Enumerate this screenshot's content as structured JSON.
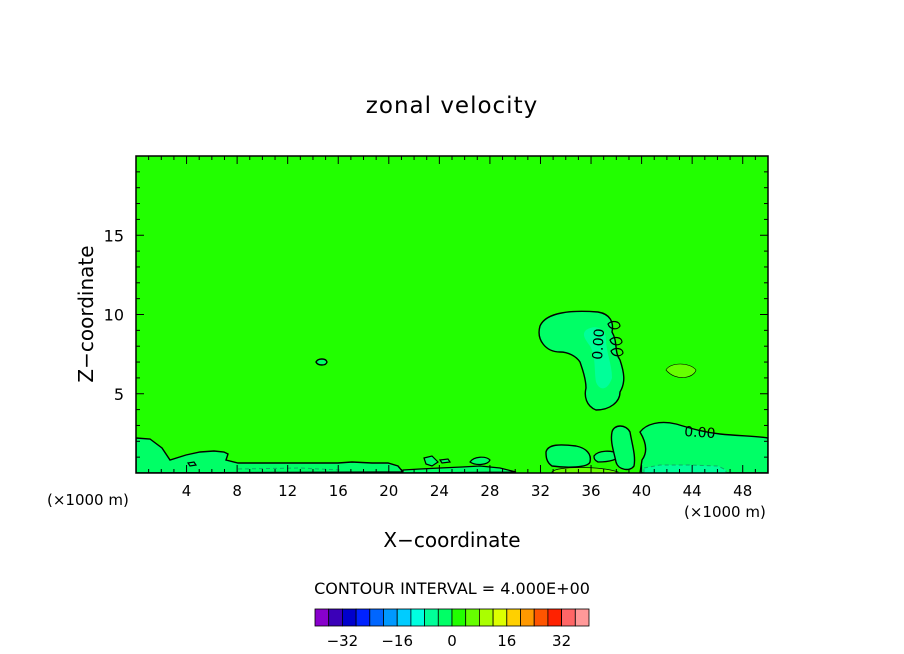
{
  "chart_data": {
    "type": "contour",
    "title": "zonal velocity",
    "xlabel": "X−coordinate",
    "ylabel": "Z−coordinate",
    "x_unit_left": "(×1000 m)",
    "x_unit_right": "(×1000 m)",
    "xlim": [
      0,
      50
    ],
    "ylim": [
      0,
      20
    ],
    "xticks": [
      4,
      8,
      12,
      16,
      20,
      24,
      28,
      32,
      36,
      40,
      44,
      48
    ],
    "yticks": [
      5,
      10,
      15
    ],
    "background_value": 0,
    "contour_label": "0.00",
    "contour_interval_text": "CONTOUR INTERVAL = 4.000E+00",
    "colorbar": {
      "levels": [
        -36,
        -32,
        -28,
        -24,
        -20,
        -16,
        -12,
        -8,
        -4,
        0,
        4,
        8,
        12,
        16,
        20,
        24,
        28,
        32,
        36
      ],
      "tick_labels": [
        "−32",
        "−16",
        "0",
        "16",
        "32"
      ],
      "tick_values": [
        -32,
        -16,
        0,
        16,
        32
      ],
      "colors": [
        "#8800cc",
        "#3b00b8",
        "#0000cc",
        "#0022ff",
        "#0066ff",
        "#0099ff",
        "#00ccff",
        "#00ffe0",
        "#00ff99",
        "#00ff66",
        "#22ff00",
        "#66ff00",
        "#aaff00",
        "#ddff00",
        "#ffd000",
        "#ff9900",
        "#ff5500",
        "#ff2200",
        "#ff6666",
        "#ff9999"
      ]
    },
    "colors": {
      "field": "#22ff00",
      "weak_negative": "#00ff66",
      "mid_negative": "#00ff99",
      "positive": "#66ff00"
    }
  }
}
